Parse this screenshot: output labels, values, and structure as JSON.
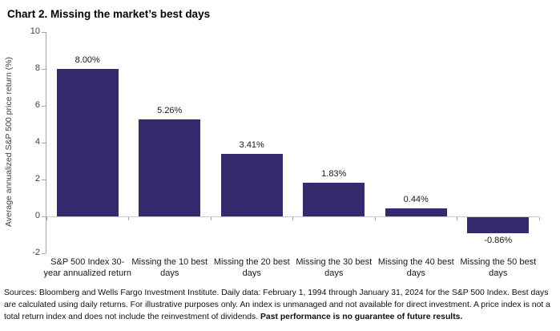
{
  "header": {
    "title": "Chart 2. Missing the market’s best days"
  },
  "chart_data": {
    "type": "bar",
    "title": "Chart 2. Missing the market’s best days",
    "categories": [
      "S&P 500 Index 30-year annualized return",
      "Missing the 10 best days",
      "Missing the 20 best days",
      "Missing the 30 best days",
      "Missing the 40 best days",
      "Missing the 50 best days"
    ],
    "values": [
      8.0,
      5.26,
      3.41,
      1.83,
      0.44,
      -0.86
    ],
    "value_labels": [
      "8.00%",
      "5.26%",
      "3.41%",
      "1.83%",
      "0.44%",
      "-0.86%"
    ],
    "xlabel": "",
    "ylabel": "Average annualized S&P 500 price return (%)",
    "ylim": [
      -2,
      10
    ],
    "yticks": [
      -2,
      0,
      2,
      4,
      6,
      8,
      10
    ],
    "grid": false,
    "legend_position": "none",
    "bar_color": "#352A6B",
    "axis_color": "#a6a6a6",
    "zero_line_color": "#c9c9c9"
  },
  "footer": {
    "text": "Sources: Bloomberg and Wells Fargo Investment Institute. Daily data: February 1, 1994 through January 31, 2024 for the S&P 500 Index. Best days are calculated using daily returns. For illustrative purposes only. An index is unmanaged and not available for direct investment. A price index is not a total return index and does not include the reinvestment of dividends. ",
    "bold_text": "Past performance is no guarantee of future results."
  }
}
